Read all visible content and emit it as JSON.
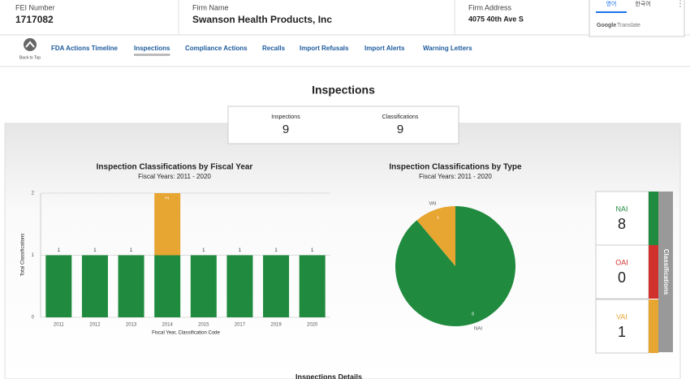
{
  "header": {
    "fei_label": "FEI Number",
    "fei": "1717082",
    "firm_label": "Firm Name",
    "firm": "Swanson Health Products, Inc",
    "address_label": "Firm Address",
    "address": "4075 40th Ave S"
  },
  "translate": {
    "tabs": [
      "영어",
      "한국어"
    ],
    "brand": "Google",
    "brand_suffix": "Translate"
  },
  "nav": {
    "back": "Back to Top",
    "links": [
      "FDA Actions Timeline",
      "Inspections",
      "Compliance Actions",
      "Recalls",
      "Import Refusals",
      "Import Alerts",
      "Warning Letters"
    ],
    "active": 1
  },
  "page_title": "Inspections",
  "summary": [
    {
      "label": "Inspections",
      "value": 9
    },
    {
      "label": "Classifications",
      "value": 9
    }
  ],
  "chart_data": [
    {
      "type": "bar",
      "stacked": true,
      "title": "Inspection Classifications by Fiscal Year",
      "subtitle": "Fiscal Years: 2011 - 2020",
      "x_label": "Fiscal Year, Classification Code",
      "y_label": "Total Classifications",
      "categories": [
        "2011",
        "2012",
        "2013",
        "2014",
        "2015",
        "2017",
        "2019",
        "2020"
      ],
      "series": [
        {
          "name": "NAI",
          "color": "#208a3e",
          "values": [
            1,
            1,
            1,
            1,
            1,
            1,
            1,
            1
          ]
        },
        {
          "name": "VAI",
          "color": "#e7a532",
          "values": [
            0,
            0,
            0,
            1,
            0,
            0,
            0,
            0
          ]
        }
      ],
      "total_labels": [
        1,
        1,
        1,
        2,
        1,
        1,
        1,
        1
      ],
      "ylim": [
        0,
        2
      ],
      "yticks": [
        0,
        1,
        2
      ],
      "grid": true
    },
    {
      "type": "pie",
      "title": "Inspection Classifications by Type",
      "subtitle": "Fiscal Years: 2011 - 2020",
      "categories": [
        "VAI",
        "NAI"
      ],
      "values": [
        1,
        8
      ],
      "colors": [
        "#e7a532",
        "#208a3e"
      ]
    }
  ],
  "classifications": {
    "title": "Classifications",
    "items": [
      {
        "label": "NAI",
        "value": 8,
        "color": "#208a3e"
      },
      {
        "label": "OAI",
        "value": 0,
        "color": "#d0312d"
      },
      {
        "label": "VAI",
        "value": 1,
        "color": "#e7a532"
      }
    ]
  },
  "details_title": "Inspections Details"
}
